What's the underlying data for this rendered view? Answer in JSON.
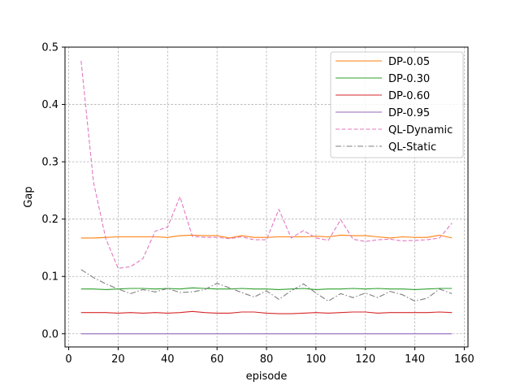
{
  "chart_data": {
    "type": "line",
    "xlabel": "episode",
    "ylabel": "Gap",
    "xlim": [
      -1.5,
      161.5
    ],
    "ylim": [
      -0.023,
      0.5
    ],
    "xticks": [
      0,
      20,
      40,
      60,
      80,
      100,
      120,
      140,
      160
    ],
    "yticks": [
      0.0,
      0.1,
      0.2,
      0.3,
      0.4,
      0.5
    ],
    "xtick_labels": [
      "0",
      "20",
      "40",
      "60",
      "80",
      "100",
      "120",
      "140",
      "160"
    ],
    "ytick_labels": [
      "0.0",
      "0.1",
      "0.2",
      "0.3",
      "0.4",
      "0.5"
    ],
    "grid": true,
    "legend_position": "top-right",
    "x": [
      5,
      10,
      15,
      20,
      25,
      30,
      35,
      40,
      45,
      50,
      55,
      60,
      65,
      70,
      75,
      80,
      85,
      90,
      95,
      100,
      105,
      110,
      115,
      120,
      125,
      130,
      135,
      140,
      145,
      150,
      155
    ],
    "series": [
      {
        "name": "DP-0.05",
        "color": "#ff7f0e",
        "dash": "solid",
        "values": [
          0.167,
          0.167,
          0.168,
          0.169,
          0.169,
          0.169,
          0.169,
          0.168,
          0.171,
          0.172,
          0.171,
          0.171,
          0.167,
          0.171,
          0.168,
          0.168,
          0.169,
          0.169,
          0.169,
          0.17,
          0.169,
          0.172,
          0.171,
          0.171,
          0.169,
          0.167,
          0.169,
          0.168,
          0.168,
          0.172,
          0.167
        ]
      },
      {
        "name": "DP-0.30",
        "color": "#2ca02c",
        "dash": "solid",
        "values": [
          0.078,
          0.078,
          0.077,
          0.078,
          0.079,
          0.079,
          0.078,
          0.079,
          0.078,
          0.08,
          0.079,
          0.078,
          0.078,
          0.079,
          0.078,
          0.078,
          0.077,
          0.078,
          0.079,
          0.077,
          0.078,
          0.078,
          0.079,
          0.078,
          0.079,
          0.078,
          0.078,
          0.077,
          0.078,
          0.079,
          0.079
        ]
      },
      {
        "name": "DP-0.60",
        "color": "#d62728",
        "dash": "solid",
        "values": [
          0.037,
          0.037,
          0.037,
          0.036,
          0.037,
          0.036,
          0.037,
          0.036,
          0.037,
          0.039,
          0.037,
          0.036,
          0.036,
          0.038,
          0.038,
          0.036,
          0.035,
          0.035,
          0.036,
          0.037,
          0.036,
          0.037,
          0.038,
          0.038,
          0.036,
          0.037,
          0.037,
          0.037,
          0.037,
          0.038,
          0.037
        ]
      },
      {
        "name": "DP-0.95",
        "color": "#9467bd",
        "dash": "solid",
        "values": [
          0.0,
          0.0,
          0.0,
          0.0,
          0.0,
          0.0,
          0.0,
          0.0,
          0.0,
          0.0,
          0.0,
          0.0,
          0.0,
          0.0,
          0.0,
          0.0,
          0.0,
          0.0,
          0.0,
          0.0,
          0.0,
          0.0,
          0.0,
          0.0,
          0.0,
          0.0,
          0.0,
          0.0,
          0.0,
          0.0,
          0.0
        ]
      },
      {
        "name": "QL-Dynamic",
        "color": "#e377c2",
        "dash": "dashed",
        "values": [
          0.476,
          0.265,
          0.166,
          0.114,
          0.117,
          0.131,
          0.179,
          0.186,
          0.239,
          0.17,
          0.168,
          0.168,
          0.166,
          0.169,
          0.164,
          0.164,
          0.217,
          0.167,
          0.18,
          0.167,
          0.163,
          0.199,
          0.165,
          0.161,
          0.164,
          0.165,
          0.162,
          0.163,
          0.164,
          0.167,
          0.193
        ]
      },
      {
        "name": "QL-Static",
        "color": "#7f7f7f",
        "dash": "dashdot",
        "values": [
          0.112,
          0.098,
          0.087,
          0.078,
          0.07,
          0.077,
          0.073,
          0.079,
          0.072,
          0.073,
          0.077,
          0.088,
          0.08,
          0.072,
          0.064,
          0.075,
          0.06,
          0.075,
          0.087,
          0.071,
          0.057,
          0.07,
          0.063,
          0.071,
          0.063,
          0.074,
          0.068,
          0.057,
          0.062,
          0.078,
          0.07
        ]
      }
    ]
  }
}
